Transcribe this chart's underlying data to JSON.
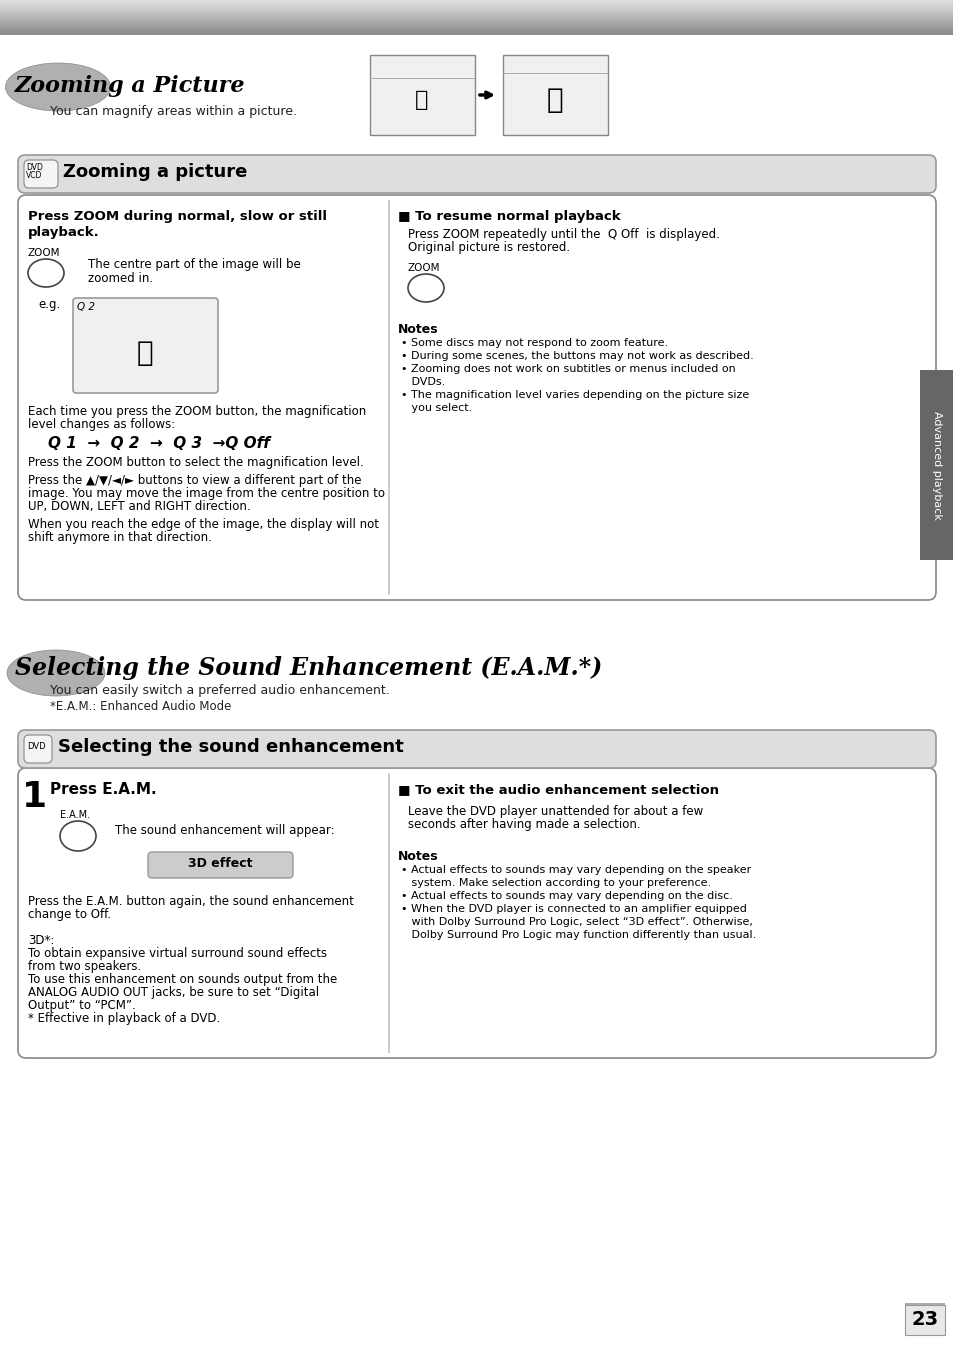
{
  "page_bg": "#ffffff",
  "page_number": "23",
  "title1": "Zooming a Picture",
  "subtitle1": "You can magnify areas within a picture.",
  "section1_header": "Zooming a picture",
  "left_box_title_1": "Press ZOOM during normal, slow or still",
  "left_box_title_2": "playback.",
  "zoom_label": "ZOOM",
  "zoom_text_1": "The centre part of the image will be",
  "zoom_text_2": "zoomed in.",
  "eg_label": "e.g.",
  "q2_label": "Q 2",
  "magnif_1": "Each time you press the ZOOM button, the magnification",
  "magnif_2": "level changes as follows:",
  "zoom_seq": "Q 1  →  Q 2  →  Q 3  →Q Off",
  "zoom_seq2": "Press the ZOOM button to select the magnification level.",
  "arrows_1": "Press the ▲/▼/◄/► buttons to view a different part of the",
  "arrows_2": "image. You may move the image from the centre position to",
  "arrows_3": "UP, DOWN, LEFT and RIGHT direction.",
  "edge_1": "When you reach the edge of the image, the display will not",
  "edge_2": "shift anymore in that direction.",
  "right_title": "■ To resume normal playback",
  "right_text_1": "Press ZOOM repeatedly until the  Q Off  is displayed.",
  "right_text_2": "Original picture is restored.",
  "zoom_label2": "ZOOM",
  "notes_title": "Notes",
  "notes": [
    "• Some discs may not respond to zoom feature.",
    "• During some scenes, the buttons may not work as described.",
    "• Zooming does not work on subtitles or menus included on",
    "   DVDs.",
    "• The magnification level varies depending on the picture size",
    "   you select."
  ],
  "side_label": "Advanced playback",
  "title2": "Selecting the Sound Enhancement (E.A.M.*)",
  "subtitle2": "You can easily switch a preferred audio enhancement.",
  "footnote2": "*E.A.M.: Enhanced Audio Mode",
  "section2_header": "Selecting the sound enhancement",
  "step1_num": "1",
  "step1_title": "Press E.A.M.",
  "eam_label": "E.A.M.",
  "eam_text": "The sound enhancement will appear:",
  "effect_label": "3D effect",
  "eam_body": [
    "Press the E.A.M. button again, the sound enhancement",
    "change to Off.",
    "",
    "3D*:",
    "To obtain expansive virtual surround sound effects",
    "from two speakers.",
    "To use this enhancement on sounds output from the",
    "ANALOG AUDIO OUT jacks, be sure to set “Digital",
    "Output” to “PCM”.",
    "* Effective in playback of a DVD."
  ],
  "right2_title": "■ To exit the audio enhancement selection",
  "right2_text_1": "Leave the DVD player unattended for about a few",
  "right2_text_2": "seconds after having made a selection.",
  "notes2_title": "Notes",
  "notes2": [
    "• Actual effects to sounds may vary depending on the speaker",
    "   system. Make selection according to your preference.",
    "• Actual effects to sounds may vary depending on the disc.",
    "• When the DVD player is connected to an amplifier equipped",
    "   with Dolby Surround Pro Logic, select “3D effect”. Otherwise,",
    "   Dolby Surround Pro Logic may function differently than usual."
  ]
}
